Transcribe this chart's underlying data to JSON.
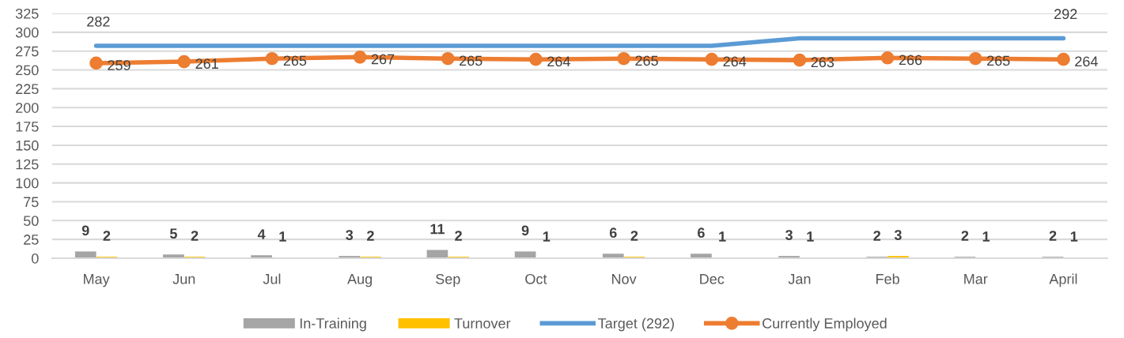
{
  "chart_data": {
    "type": "bar",
    "categories": [
      "May",
      "Jun",
      "Jul",
      "Aug",
      "Sep",
      "Oct",
      "Nov",
      "Dec",
      "Jan",
      "Feb",
      "Mar",
      "April"
    ],
    "series": [
      {
        "name": "In-Training",
        "color": "#a5a5a5",
        "values": [
          9,
          5,
          4,
          3,
          11,
          9,
          6,
          6,
          3,
          2,
          2,
          2
        ],
        "data_labels": true
      },
      {
        "name": "Turnover",
        "color": "#ffc000",
        "values": [
          2,
          2,
          1,
          2,
          2,
          1,
          2,
          1,
          1,
          3,
          1,
          1
        ],
        "data_labels": true
      },
      {
        "name": "Target (292)",
        "type": "line",
        "color": "#5b9bd5",
        "marker": "none",
        "values": [
          282,
          282,
          282,
          282,
          282,
          282,
          282,
          282,
          292,
          292,
          292,
          292
        ],
        "value_labels": [
          "282",
          null,
          null,
          null,
          null,
          null,
          null,
          null,
          null,
          null,
          null,
          "292"
        ]
      },
      {
        "name": "Currently Employed",
        "type": "line",
        "color": "#ed7d31",
        "marker": "circle",
        "values": [
          259,
          261,
          265,
          267,
          265,
          264,
          265,
          264,
          263,
          266,
          265,
          264
        ],
        "data_labels": true
      }
    ],
    "ylim": [
      0,
      325
    ],
    "yticks": [
      0,
      25,
      50,
      75,
      100,
      125,
      150,
      175,
      200,
      225,
      250,
      275,
      300,
      325
    ],
    "grid": "y",
    "legend": "bottom"
  }
}
